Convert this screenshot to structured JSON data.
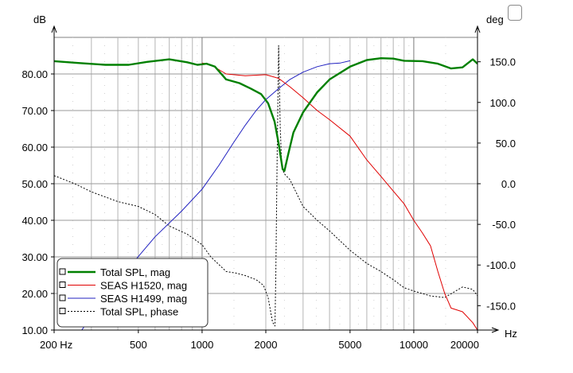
{
  "chart_data": {
    "type": "line",
    "left_axis_unit": "dB",
    "right_axis_unit": "deg",
    "x_axis_unit": "Hz",
    "x_scale": "log",
    "x_range": [
      200,
      20000
    ],
    "y_range_left": [
      10,
      90
    ],
    "y_range_right": [
      -180,
      180
    ],
    "grid": true,
    "legend_position": "bottom-left",
    "x_tick_labels": [
      {
        "value": 200,
        "label": "200 Hz"
      },
      {
        "value": 500,
        "label": "500"
      },
      {
        "value": 1000,
        "label": "1000"
      },
      {
        "value": 2000,
        "label": "2000"
      },
      {
        "value": 5000,
        "label": "5000"
      },
      {
        "value": 10000,
        "label": "10000"
      },
      {
        "value": 20000,
        "label": "20000"
      }
    ],
    "y_left_ticks": [
      {
        "value": 80,
        "label": "80.00"
      },
      {
        "value": 70,
        "label": "70.00"
      },
      {
        "value": 60,
        "label": "60.00"
      },
      {
        "value": 50,
        "label": "50.00"
      },
      {
        "value": 40,
        "label": "40.00"
      },
      {
        "value": 30,
        "label": "30.00"
      },
      {
        "value": 20,
        "label": "20.00"
      },
      {
        "value": 10,
        "label": "10.00"
      }
    ],
    "y_right_ticks": [
      {
        "value": 150,
        "label": "150.0"
      },
      {
        "value": 100,
        "label": "100.0"
      },
      {
        "value": 50,
        "label": "50.0"
      },
      {
        "value": 0,
        "label": "0.0"
      },
      {
        "value": -50,
        "label": "-50.0"
      },
      {
        "value": -100,
        "label": "-100.0"
      },
      {
        "value": -150,
        "label": "-150.0"
      }
    ],
    "series": [
      {
        "name": "Total SPL, mag",
        "axis": "left",
        "color": "#008000",
        "style": "solid-thick",
        "points": [
          [
            200,
            83.5
          ],
          [
            260,
            83.0
          ],
          [
            350,
            82.5
          ],
          [
            450,
            82.5
          ],
          [
            550,
            83.3
          ],
          [
            700,
            84.0
          ],
          [
            850,
            83.2
          ],
          [
            950,
            82.5
          ],
          [
            1050,
            82.8
          ],
          [
            1150,
            82.0
          ],
          [
            1300,
            78.5
          ],
          [
            1500,
            77.5
          ],
          [
            1700,
            76.0
          ],
          [
            1900,
            74.5
          ],
          [
            2050,
            72.0
          ],
          [
            2200,
            67.0
          ],
          [
            2300,
            61.0
          ],
          [
            2400,
            54.0
          ],
          [
            2450,
            53.5
          ],
          [
            2550,
            58.0
          ],
          [
            2700,
            64.0
          ],
          [
            3000,
            69.5
          ],
          [
            3500,
            75.0
          ],
          [
            4000,
            78.5
          ],
          [
            5000,
            82.0
          ],
          [
            6000,
            83.8
          ],
          [
            7000,
            84.3
          ],
          [
            8000,
            84.2
          ],
          [
            9000,
            83.6
          ],
          [
            11000,
            83.5
          ],
          [
            13000,
            82.8
          ],
          [
            15000,
            81.5
          ],
          [
            17000,
            81.8
          ],
          [
            19000,
            84.0
          ],
          [
            20000,
            82.8
          ]
        ]
      },
      {
        "name": "SEAS H1520, mag",
        "axis": "left",
        "color": "#e00000",
        "style": "solid",
        "points": [
          [
            1000,
            83.0
          ],
          [
            1100,
            82.5
          ],
          [
            1300,
            80.0
          ],
          [
            1600,
            79.5
          ],
          [
            2000,
            79.8
          ],
          [
            2300,
            78.8
          ],
          [
            2600,
            76.5
          ],
          [
            3000,
            73.5
          ],
          [
            3500,
            70.0
          ],
          [
            4000,
            67.5
          ],
          [
            5000,
            63.0
          ],
          [
            6000,
            56.5
          ],
          [
            7000,
            52.0
          ],
          [
            8000,
            48.0
          ],
          [
            9000,
            44.5
          ],
          [
            10000,
            40.0
          ],
          [
            11000,
            36.5
          ],
          [
            12000,
            33.0
          ],
          [
            13000,
            26.0
          ],
          [
            14000,
            20.0
          ],
          [
            15000,
            16.0
          ],
          [
            17000,
            15.0
          ],
          [
            19000,
            12.0
          ],
          [
            20000,
            10.0
          ]
        ]
      },
      {
        "name": "SEAS H1499, mag",
        "axis": "left",
        "color": "#2020c0",
        "style": "solid",
        "points": [
          [
            270,
            10.0
          ],
          [
            350,
            19.0
          ],
          [
            450,
            27.0
          ],
          [
            600,
            35.5
          ],
          [
            800,
            42.5
          ],
          [
            1000,
            48.5
          ],
          [
            1200,
            55.0
          ],
          [
            1400,
            61.0
          ],
          [
            1600,
            66.0
          ],
          [
            1800,
            70.0
          ],
          [
            2000,
            73.0
          ],
          [
            2300,
            76.0
          ],
          [
            2600,
            78.5
          ],
          [
            3000,
            80.5
          ],
          [
            3500,
            82.0
          ],
          [
            4000,
            82.8
          ],
          [
            4500,
            83.0
          ],
          [
            5000,
            83.6
          ]
        ]
      },
      {
        "name": "Total SPL, phase",
        "axis": "right",
        "color": "#000000",
        "style": "dotted",
        "points": [
          [
            200,
            10
          ],
          [
            250,
            0
          ],
          [
            300,
            -10
          ],
          [
            400,
            -22
          ],
          [
            500,
            -28
          ],
          [
            600,
            -38
          ],
          [
            700,
            -52
          ],
          [
            850,
            -62
          ],
          [
            1000,
            -75
          ],
          [
            1100,
            -90
          ],
          [
            1300,
            -108
          ],
          [
            1450,
            -110
          ],
          [
            1600,
            -113
          ],
          [
            1800,
            -118
          ],
          [
            1950,
            -125
          ],
          [
            2050,
            -140
          ],
          [
            2150,
            -170
          ],
          [
            2210,
            -175
          ],
          [
            2230,
            -110
          ],
          [
            2260,
            20
          ],
          [
            2300,
            170
          ],
          [
            2340,
            70
          ],
          [
            2380,
            20
          ],
          [
            2450,
            12
          ],
          [
            2600,
            5
          ],
          [
            3000,
            -28
          ],
          [
            3500,
            -45
          ],
          [
            4000,
            -58
          ],
          [
            5000,
            -82
          ],
          [
            6000,
            -98
          ],
          [
            7000,
            -108
          ],
          [
            8000,
            -118
          ],
          [
            9000,
            -128
          ],
          [
            10000,
            -132
          ],
          [
            12000,
            -138
          ],
          [
            14000,
            -140
          ],
          [
            17000,
            -127
          ],
          [
            19000,
            -130
          ],
          [
            20000,
            -138
          ]
        ]
      }
    ]
  }
}
